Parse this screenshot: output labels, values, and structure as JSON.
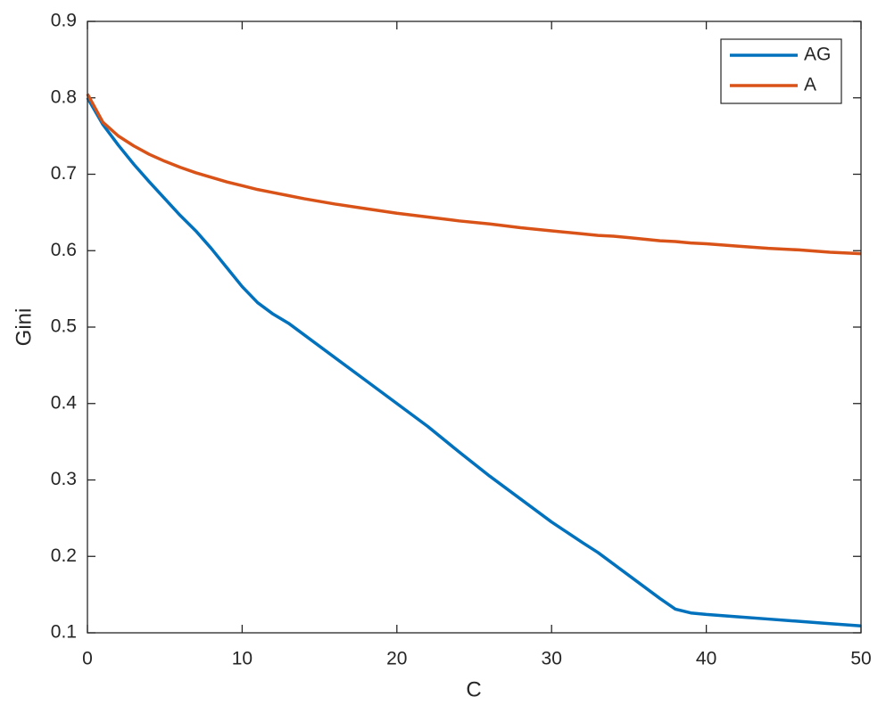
{
  "chart_data": {
    "type": "line",
    "xlabel": "C",
    "ylabel": "Gini",
    "x": [
      0,
      1,
      2,
      3,
      4,
      5,
      6,
      7,
      8,
      9,
      10,
      11,
      12,
      13,
      14,
      16,
      18,
      20,
      22,
      24,
      26,
      28,
      30,
      32,
      33,
      34,
      35,
      36,
      37,
      38,
      39,
      40,
      42,
      44,
      46,
      48,
      50
    ],
    "series": [
      {
        "name": "AG",
        "color": "#0072bd",
        "values": [
          0.8,
          0.765,
          0.738,
          0.713,
          0.69,
          0.668,
          0.646,
          0.626,
          0.603,
          0.578,
          0.553,
          0.532,
          0.517,
          0.505,
          0.49,
          0.46,
          0.43,
          0.4,
          0.37,
          0.337,
          0.305,
          0.275,
          0.245,
          0.218,
          0.205,
          0.19,
          0.175,
          0.16,
          0.145,
          0.131,
          0.126,
          0.124,
          0.121,
          0.118,
          0.115,
          0.112,
          0.109
        ]
      },
      {
        "name": "A",
        "color": "#d95319",
        "values": [
          0.805,
          0.768,
          0.75,
          0.737,
          0.726,
          0.717,
          0.709,
          0.702,
          0.696,
          0.69,
          0.685,
          0.68,
          0.676,
          0.672,
          0.668,
          0.661,
          0.655,
          0.649,
          0.644,
          0.639,
          0.635,
          0.63,
          0.626,
          0.622,
          0.62,
          0.619,
          0.617,
          0.615,
          0.613,
          0.612,
          0.61,
          0.609,
          0.606,
          0.603,
          0.601,
          0.598,
          0.596
        ]
      }
    ],
    "xlim": [
      0,
      50
    ],
    "xticks": [
      0,
      10,
      20,
      30,
      40,
      50
    ],
    "ylim": [
      0.1,
      0.9
    ],
    "yticks": [
      0.1,
      0.2,
      0.3,
      0.4,
      0.5,
      0.6,
      0.7,
      0.8,
      0.9
    ],
    "legend": "top-right",
    "grid": false
  }
}
